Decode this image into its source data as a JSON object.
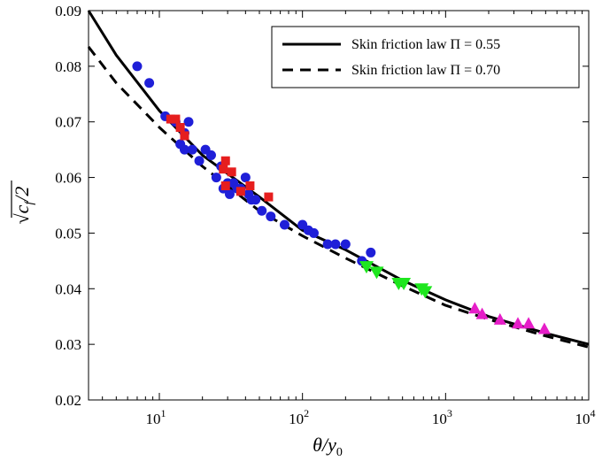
{
  "chart_data": {
    "type": "scatter",
    "xscale": "log",
    "xlim": [
      3.2,
      10000
    ],
    "ylim": [
      0.02,
      0.09
    ],
    "xlabel": "θ/y",
    "xlabel_sub": "0",
    "ylabel": "c",
    "ylabel_sub": "f",
    "ylabel_tail": "/2",
    "ylabel_root": "√",
    "x_ticks": [
      {
        "value": 10,
        "base": "10",
        "exp": "1"
      },
      {
        "value": 100,
        "base": "10",
        "exp": "2"
      },
      {
        "value": 1000,
        "base": "10",
        "exp": "3"
      },
      {
        "value": 10000,
        "base": "10",
        "exp": "4"
      }
    ],
    "y_ticks": [
      0.02,
      0.03,
      0.04,
      0.05,
      0.06,
      0.07,
      0.08,
      0.09
    ],
    "y_tick_labels": [
      "0.02",
      "0.03",
      "0.04",
      "0.05",
      "0.06",
      "0.07",
      "0.08",
      "0.09"
    ],
    "grid": false,
    "legend_position": "top-right",
    "lines": [
      {
        "name": "Skin friction law Π = 0.55",
        "style": "solid",
        "color": "#000000",
        "x": [
          3.2,
          5,
          10,
          20,
          50,
          100,
          200,
          500,
          1000,
          2000,
          5000,
          10000
        ],
        "y": [
          0.09,
          0.082,
          0.072,
          0.064,
          0.0565,
          0.0505,
          0.047,
          0.0415,
          0.038,
          0.035,
          0.032,
          0.03
        ]
      },
      {
        "name": "Skin friction law Π = 0.70",
        "style": "dashed",
        "color": "#000000",
        "x": [
          3.2,
          5,
          10,
          20,
          50,
          100,
          200,
          500,
          1000,
          2000,
          5000,
          10000
        ],
        "y": [
          0.0835,
          0.077,
          0.069,
          0.062,
          0.054,
          0.0495,
          0.0455,
          0.0405,
          0.037,
          0.0345,
          0.0315,
          0.0295
        ]
      }
    ],
    "series": [
      {
        "marker": "circle",
        "color": "#1f1fd8",
        "points": [
          [
            7,
            0.08
          ],
          [
            8.5,
            0.077
          ],
          [
            11,
            0.071
          ],
          [
            13,
            0.07
          ],
          [
            14,
            0.066
          ],
          [
            15,
            0.068
          ],
          [
            15,
            0.065
          ],
          [
            16,
            0.07
          ],
          [
            17,
            0.065
          ],
          [
            19,
            0.063
          ],
          [
            21,
            0.065
          ],
          [
            23,
            0.064
          ],
          [
            25,
            0.06
          ],
          [
            27,
            0.062
          ],
          [
            28,
            0.058
          ],
          [
            30,
            0.059
          ],
          [
            31,
            0.057
          ],
          [
            33,
            0.059
          ],
          [
            35,
            0.058
          ],
          [
            37,
            0.058
          ],
          [
            40,
            0.06
          ],
          [
            42,
            0.057
          ],
          [
            44,
            0.056
          ],
          [
            47,
            0.056
          ],
          [
            52,
            0.054
          ],
          [
            60,
            0.053
          ],
          [
            75,
            0.0515
          ],
          [
            100,
            0.0515
          ],
          [
            110,
            0.0505
          ],
          [
            120,
            0.05
          ],
          [
            150,
            0.048
          ],
          [
            170,
            0.048
          ],
          [
            200,
            0.048
          ],
          [
            260,
            0.045
          ],
          [
            300,
            0.0465
          ]
        ]
      },
      {
        "marker": "square",
        "color": "#e61e1e",
        "points": [
          [
            12,
            0.0705
          ],
          [
            13,
            0.0705
          ],
          [
            14,
            0.069
          ],
          [
            15,
            0.0675
          ],
          [
            28,
            0.0615
          ],
          [
            29,
            0.063
          ],
          [
            29,
            0.0585
          ],
          [
            32,
            0.061
          ],
          [
            37,
            0.0575
          ],
          [
            43,
            0.0585
          ],
          [
            58,
            0.0565
          ]
        ]
      },
      {
        "marker": "triangle-down",
        "color": "#1ee61e",
        "points": [
          [
            280,
            0.044
          ],
          [
            330,
            0.043
          ],
          [
            470,
            0.041
          ],
          [
            510,
            0.041
          ],
          [
            680,
            0.04
          ],
          [
            720,
            0.0395
          ]
        ]
      },
      {
        "marker": "triangle-up",
        "color": "#e61ec8",
        "points": [
          [
            1600,
            0.0365
          ],
          [
            1800,
            0.0355
          ],
          [
            2400,
            0.0345
          ],
          [
            3200,
            0.0338
          ],
          [
            3800,
            0.0338
          ],
          [
            4900,
            0.0328
          ]
        ]
      }
    ],
    "legend": [
      {
        "label": "Skin friction law Π = 0.55",
        "style": "solid"
      },
      {
        "label": "Skin friction law Π = 0.70",
        "style": "dashed"
      }
    ]
  }
}
